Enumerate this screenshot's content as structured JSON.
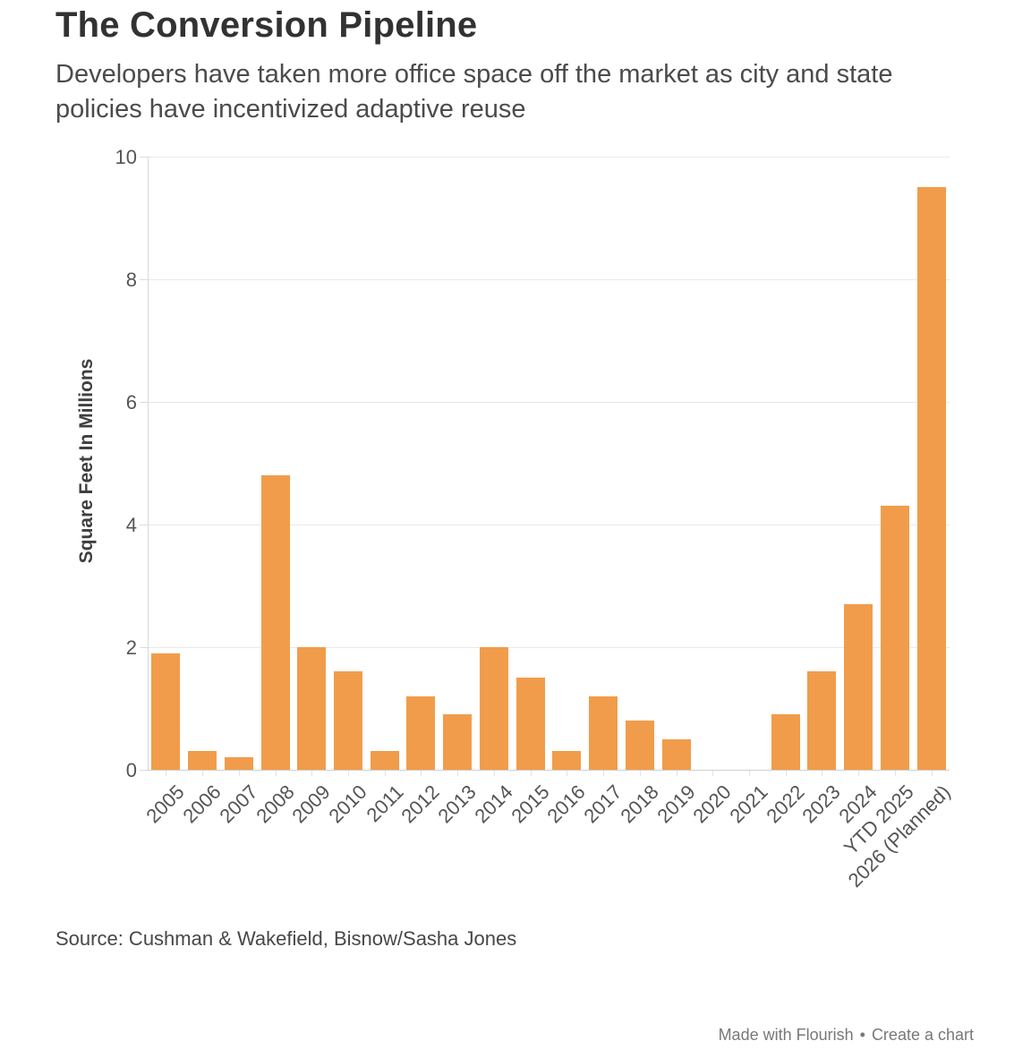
{
  "header": {
    "title": "The Conversion Pipeline",
    "subtitle": "Developers have taken more office space off the market as city and state policies have incentivized adaptive reuse"
  },
  "chart_data": {
    "type": "bar",
    "title": "The Conversion Pipeline",
    "categories": [
      "2005",
      "2006",
      "2007",
      "2008",
      "2009",
      "2010",
      "2011",
      "2012",
      "2013",
      "2014",
      "2015",
      "2016",
      "2017",
      "2018",
      "2019",
      "2020",
      "2021",
      "2022",
      "2023",
      "2024",
      "YTD 2025",
      "2026 (Planned)"
    ],
    "values": [
      1.9,
      0.3,
      0.2,
      4.8,
      2.0,
      1.6,
      0.3,
      1.2,
      0.9,
      2.0,
      1.5,
      0.3,
      1.2,
      0.8,
      0.5,
      0,
      0,
      0.9,
      1.6,
      2.7,
      4.3,
      9.5
    ],
    "xlabel": "",
    "ylabel": "Square Feet In Millions",
    "ylim": [
      0,
      10
    ],
    "yticks": [
      0,
      2,
      4,
      6,
      8,
      10
    ],
    "grid": true,
    "legend": false,
    "bar_color": "#F19C4B",
    "gridline_color": "#e9e9e9",
    "axis_text_color": "#555555"
  },
  "source": {
    "text": "Source: Cushman & Wakefield, Bisnow/Sasha Jones"
  },
  "footer": {
    "made_with": "Made with Flourish",
    "separator": "•",
    "create_link": "Create a chart"
  }
}
